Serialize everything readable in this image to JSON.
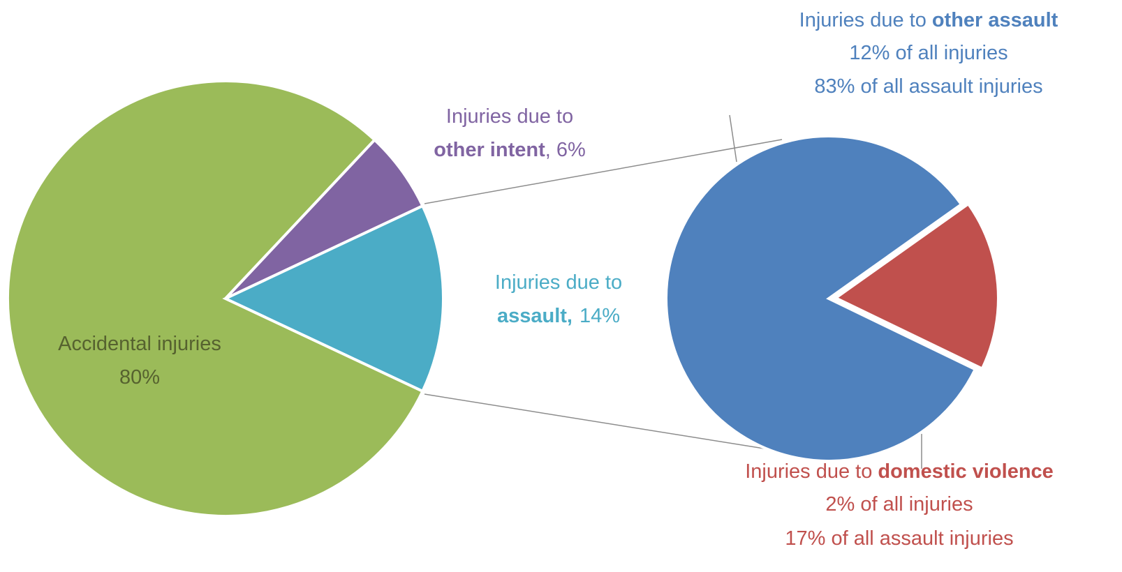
{
  "chart_data": [
    {
      "type": "pie",
      "prefix": "Injuries due to",
      "categories": [
        "Accidental injuries",
        "other intent",
        "assault"
      ],
      "separator": ",",
      "values": [
        80,
        6,
        14
      ],
      "value_labels": [
        "80%",
        "6%",
        "14%"
      ],
      "colors": [
        "#9bbb59",
        "#8064a2",
        "#4bacc6"
      ]
    },
    {
      "type": "pie",
      "prefix": "Injuries due to",
      "categories": [
        "other assault",
        "domestic violence"
      ],
      "values": [
        83,
        17
      ],
      "value_labels": [
        "83% of all assault injuries",
        "17% of all assault injuries"
      ],
      "annotations": [
        "12% of all injuries",
        "2% of all injuries"
      ],
      "colors": [
        "#4f81bd",
        "#c0504d"
      ]
    }
  ]
}
